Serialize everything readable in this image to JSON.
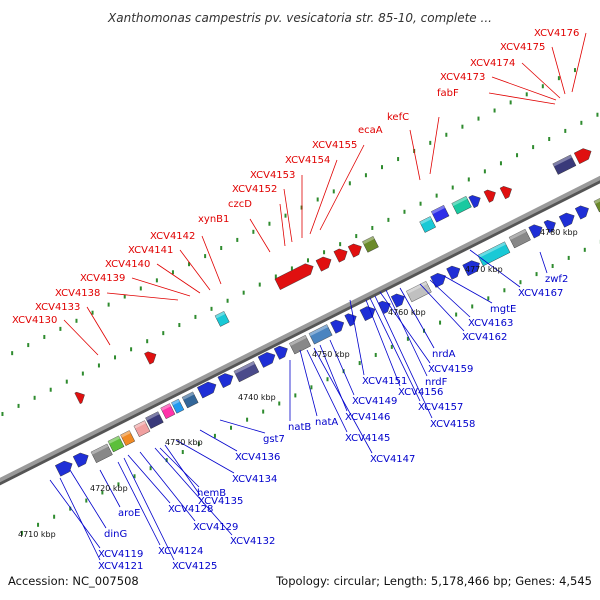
{
  "title": "Xanthomonas campestris pv. vesicatoria str. 85-10, complete ...",
  "footer": {
    "accession": "Accession: NC_007508",
    "summary": "Topology: circular; Length: 5,178,466 bp; Genes: 4,545"
  },
  "scale_labels": [
    "4710 kbp",
    "4720 kbp",
    "4730 kbp",
    "4740 kbp",
    "4750 kbp",
    "4760 kbp",
    "4770 kbp",
    "4780 kbp"
  ],
  "top_labels": [
    "XCV4130",
    "XCV4133",
    "XCV4138",
    "XCV4139",
    "XCV4140",
    "XCV4141",
    "XCV4142",
    "xynB1",
    "czcD",
    "XCV4152",
    "XCV4153",
    "XCV4154",
    "XCV4155",
    "ecaA",
    "kefC",
    "fabF",
    "XCV4173",
    "XCV4174",
    "XCV4175",
    "XCV4176"
  ],
  "bottom_labels": [
    "XCV4119",
    "XCV4121",
    "XCV4124",
    "XCV4125",
    "dinG",
    "aroE",
    "XCV4128",
    "XCV4129",
    "XCV4132",
    "hemB",
    "XCV4135",
    "XCV4134",
    "XCV4136",
    "gst7",
    "natB",
    "natA",
    "XCV4145",
    "XCV4147",
    "XCV4146",
    "XCV4149",
    "XCV4151",
    "XCV4156",
    "XCV4157",
    "XCV4158",
    "XCV4159",
    "nrdF",
    "nrdA",
    "XCV4162",
    "XCV4163",
    "mgtE",
    "XCV4167",
    "zwf2"
  ],
  "colors": {
    "backbone": "#8a8a8a",
    "top_label": "#e00000",
    "bottom_label": "#0000cc",
    "tick": "#2e8b2e"
  }
}
